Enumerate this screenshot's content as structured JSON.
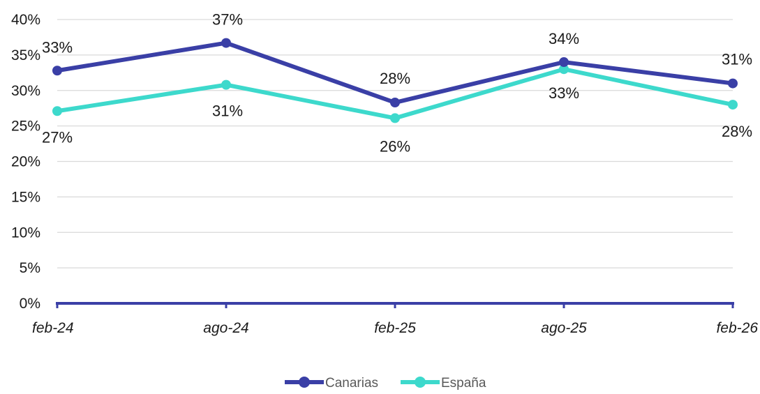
{
  "chart_data": {
    "type": "line",
    "categories": [
      "feb-24",
      "ago-24",
      "feb-25",
      "ago-25",
      "feb-26"
    ],
    "series": [
      {
        "name": "Canarias",
        "color": "#3a3fa6",
        "values": [
          32.8,
          36.7,
          28.3,
          34.0,
          31.0
        ],
        "labels": [
          "33%",
          "37%",
          "28%",
          "34%",
          "31%"
        ]
      },
      {
        "name": "España",
        "color": "#3dd9cc",
        "values": [
          27.1,
          30.8,
          26.1,
          33.0,
          28.0
        ],
        "labels": [
          "27%",
          "31%",
          "26%",
          "33%",
          "28%"
        ]
      }
    ],
    "y_ticks": [
      "0%",
      "5%",
      "10%",
      "15%",
      "20%",
      "25%",
      "30%",
      "35%",
      "40%"
    ],
    "ylim": [
      0,
      40
    ],
    "ytick_step": 5,
    "grid": true,
    "legend_position": "bottom",
    "axis_color": "#3a3fa6"
  }
}
